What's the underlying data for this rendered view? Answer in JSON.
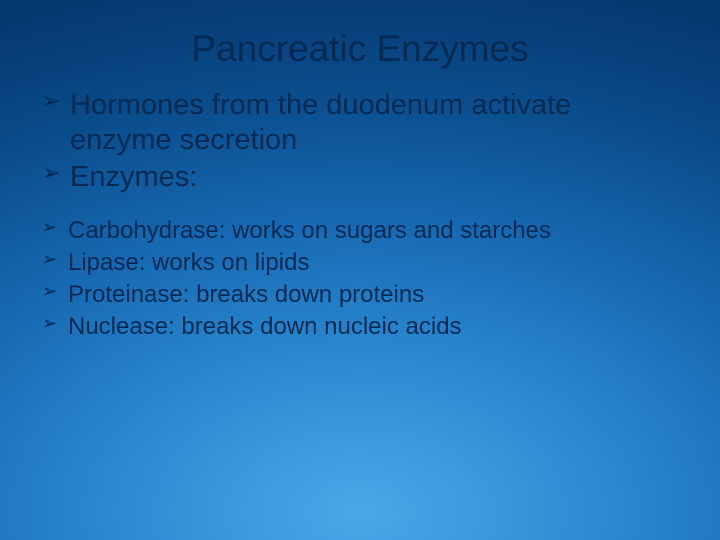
{
  "title": "Pancreatic Enzymes",
  "main_items": [
    "Hormones from the duodenum activate enzyme secretion",
    "Enzymes:"
  ],
  "sub_items": [
    "Carbohydrase: works on sugars and starches",
    "Lipase: works on lipids",
    "Proteinase: breaks down proteins",
    "Nuclease: breaks down nucleic acids"
  ],
  "styling": {
    "slide_width": 720,
    "slide_height": 540,
    "background_gradient_colors": [
      "#4aa8e8",
      "#2a88d0",
      "#1668b0",
      "#0a4a88",
      "#063870"
    ],
    "title_fontsize": 37,
    "title_color": "#032a55",
    "main_fontsize": 29,
    "sub_fontsize": 24,
    "text_color": "#032a55",
    "bullet_char": "➢"
  }
}
